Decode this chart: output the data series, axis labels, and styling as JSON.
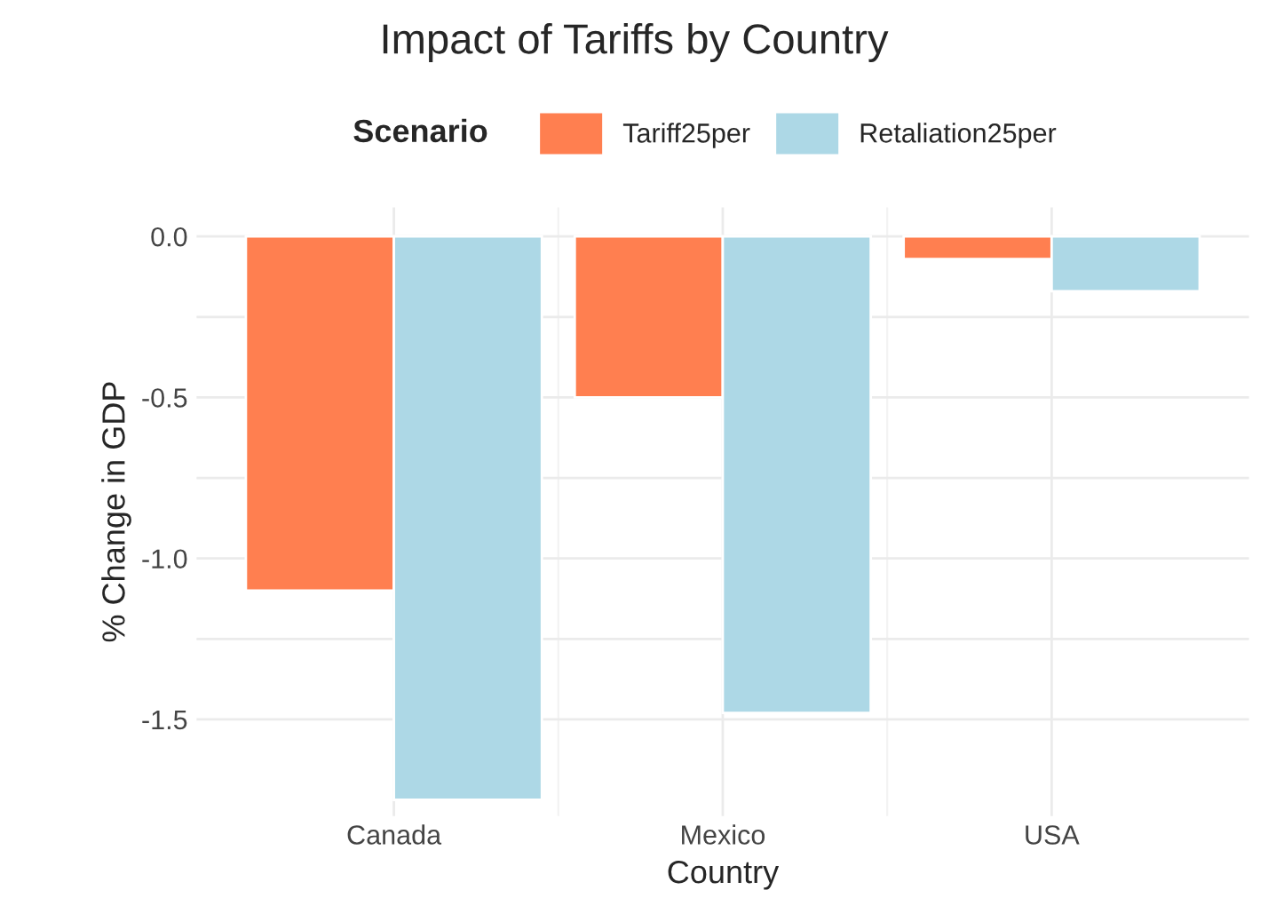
{
  "chart_data": {
    "type": "bar",
    "title": "Impact of Tariffs by Country",
    "xlabel": "Country",
    "ylabel": "% Change in GDP",
    "legend_title": "Scenario",
    "legend": "top",
    "categories": [
      "Canada",
      "Mexico",
      "USA"
    ],
    "series": [
      {
        "name": "Tariff25per",
        "color": "#ff7f50",
        "values": [
          -1.1,
          -0.5,
          -0.07
        ]
      },
      {
        "name": "Retaliation25per",
        "color": "#add8e6",
        "values": [
          -1.75,
          -1.48,
          -0.17
        ]
      }
    ],
    "ylim": [
      -1.8,
      0.09
    ],
    "yticks": [
      {
        "value": -1.5,
        "label": "-1.5"
      },
      {
        "value": -1.25,
        "label": null
      },
      {
        "value": -1.0,
        "label": "-1.0"
      },
      {
        "value": -0.75,
        "label": null
      },
      {
        "value": -0.5,
        "label": "-0.5"
      },
      {
        "value": -0.25,
        "label": null
      },
      {
        "value": 0.0,
        "label": "0.0"
      }
    ],
    "grid": true
  }
}
